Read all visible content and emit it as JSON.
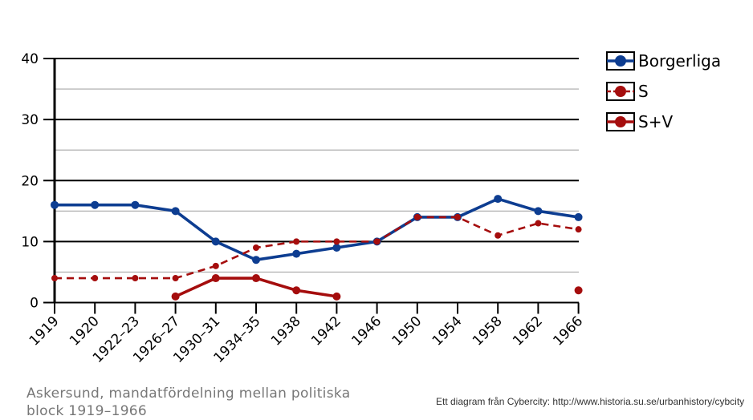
{
  "caption": "Askersund, mandatfördelning  mellan politiska block 1919–1966",
  "credit": "Ett diagram från Cybercity: http://www.historia.su.se/urbanhistory/cybcity",
  "chart_data": {
    "type": "line",
    "title": "",
    "xlabel": "",
    "ylabel": "",
    "categories": [
      "1919",
      "1920",
      "1922–23",
      "1926–27",
      "1930–31",
      "1934–35",
      "1938",
      "1942",
      "1946",
      "1950",
      "1954",
      "1958",
      "1962",
      "1966"
    ],
    "ylim": [
      0,
      40
    ],
    "yticks": [
      0,
      10,
      20,
      30,
      40
    ],
    "grid": true,
    "legend_position": "right",
    "series": [
      {
        "name": "Borgerliga",
        "color": "#0d3d91",
        "style": "solid",
        "values": [
          16,
          16,
          16,
          15,
          10,
          7,
          8,
          9,
          10,
          14,
          14,
          17,
          15,
          14
        ]
      },
      {
        "name": "S",
        "color": "#a50d0d",
        "style": "dashed",
        "values": [
          4,
          4,
          4,
          4,
          6,
          9,
          10,
          10,
          10,
          14,
          14,
          11,
          13,
          12
        ]
      },
      {
        "name": "S+V",
        "color": "#a50d0d",
        "style": "solid",
        "values": [
          null,
          null,
          null,
          1,
          4,
          4,
          2,
          1,
          null,
          null,
          null,
          null,
          null,
          2
        ]
      }
    ]
  }
}
